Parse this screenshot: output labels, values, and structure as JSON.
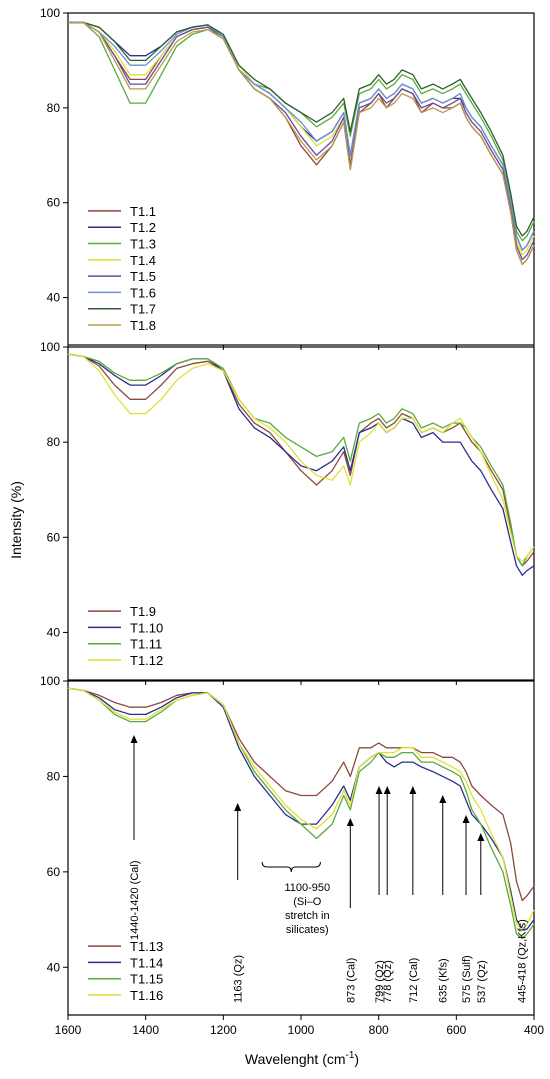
{
  "figure": {
    "ylabel": "Intensity (%)",
    "xlabel_main": "Wavelenght (cm",
    "xlabel_sup": "-1",
    "xlabel_close": ")"
  },
  "chart_data": [
    {
      "type": "line",
      "xlim": [
        1600,
        400
      ],
      "ylim": [
        30,
        100
      ],
      "x_ticks": [],
      "y_ticks": [
        40,
        60,
        80,
        100
      ],
      "x": [
        1600,
        1560,
        1520,
        1480,
        1440,
        1400,
        1360,
        1320,
        1280,
        1240,
        1200,
        1160,
        1120,
        1080,
        1040,
        1000,
        960,
        920,
        890,
        873,
        850,
        820,
        800,
        780,
        760,
        740,
        712,
        690,
        660,
        635,
        610,
        590,
        575,
        560,
        537,
        510,
        480,
        460,
        445,
        430,
        418,
        400
      ],
      "series": [
        {
          "name": "T1.1",
          "color": "#8B4A3C",
          "values": [
            98,
            98,
            96,
            91,
            86,
            86,
            91,
            95,
            96.5,
            97,
            95,
            88,
            84,
            82,
            78,
            72,
            68,
            72,
            77,
            67,
            79,
            81,
            83,
            80,
            82,
            84,
            83,
            79,
            81,
            80,
            80,
            81,
            78,
            76,
            74,
            70,
            66,
            58,
            50,
            47,
            48,
            51
          ]
        },
        {
          "name": "T1.2",
          "color": "#2D2D8F",
          "values": [
            98,
            98,
            97,
            94,
            91,
            91,
            93,
            96,
            97,
            97.5,
            95,
            88,
            85,
            83,
            80,
            76,
            73,
            75,
            79,
            70,
            81,
            82,
            84,
            82,
            83,
            85,
            84,
            81,
            82,
            81,
            82,
            82,
            80,
            78,
            76,
            72,
            68,
            60,
            53,
            50,
            51,
            54
          ]
        },
        {
          "name": "T1.3",
          "color": "#5AAA3C",
          "values": [
            98,
            98,
            95,
            88,
            81,
            81,
            87,
            93,
            95.5,
            96.5,
            95,
            89,
            85,
            84,
            81,
            79,
            76,
            78,
            81,
            74,
            83,
            84,
            86,
            84,
            85,
            87,
            86,
            83,
            84,
            83,
            84,
            85,
            83,
            81,
            78,
            74,
            69,
            61,
            54,
            52,
            53,
            56
          ]
        },
        {
          "name": "T1.4",
          "color": "#DDE235",
          "values": [
            98,
            98,
            96,
            92,
            87,
            87,
            91,
            95,
            96.5,
            97,
            95,
            89,
            85,
            83,
            80,
            76,
            72,
            74,
            78,
            69,
            81,
            82,
            84,
            82,
            83,
            85,
            84,
            81,
            82,
            81,
            82,
            83,
            80,
            78,
            76,
            72,
            68,
            60,
            52,
            49,
            50,
            53
          ]
        },
        {
          "name": "T1.5",
          "color": "#6A4A9E",
          "values": [
            98,
            98,
            96,
            91,
            85,
            85,
            90,
            95,
            96.5,
            97,
            95,
            88,
            84,
            82,
            79,
            74,
            70,
            73,
            78,
            68,
            80,
            81,
            83,
            81,
            82,
            84,
            83,
            80,
            81,
            80,
            81,
            82,
            79,
            77,
            75,
            71,
            67,
            59,
            51,
            48,
            49,
            52
          ]
        },
        {
          "name": "T1.6",
          "color": "#6B8FD6",
          "values": [
            98,
            98,
            96,
            93,
            89,
            89,
            92,
            95.5,
            97,
            97.5,
            95,
            88,
            85,
            83,
            80,
            77,
            73,
            75,
            79,
            70,
            81,
            82,
            84,
            82,
            83,
            85,
            84,
            81,
            82,
            81,
            82,
            83,
            80,
            78,
            76,
            72,
            68,
            60,
            53,
            50,
            51,
            54
          ]
        },
        {
          "name": "T1.7",
          "color": "#2E5E2E",
          "values": [
            98,
            98,
            97,
            94,
            90,
            90,
            93,
            96,
            97,
            97.5,
            95.5,
            89,
            86,
            84,
            81,
            79,
            77,
            79,
            82,
            75,
            84,
            85,
            87,
            85,
            86,
            88,
            87,
            84,
            85,
            84,
            85,
            86,
            84,
            82,
            79,
            75,
            70,
            62,
            55,
            53,
            54,
            57
          ]
        },
        {
          "name": "T1.8",
          "color": "#B89A4A",
          "values": [
            98,
            98,
            96,
            90,
            84,
            84,
            89,
            94,
            96,
            96.5,
            94.5,
            88,
            84,
            82,
            78,
            73,
            69,
            72,
            77,
            67,
            79,
            80,
            82,
            80,
            81,
            83,
            82,
            79,
            80,
            79,
            80,
            81,
            78,
            76,
            74,
            70,
            66,
            58,
            50,
            47,
            48,
            51
          ]
        }
      ],
      "legend": "left-bottom",
      "grid": false
    },
    {
      "type": "line",
      "xlim": [
        1600,
        400
      ],
      "ylim": [
        30,
        100
      ],
      "x_ticks": [],
      "y_ticks": [
        40,
        60,
        80,
        100
      ],
      "x": [
        1600,
        1560,
        1520,
        1480,
        1440,
        1400,
        1360,
        1320,
        1280,
        1240,
        1200,
        1160,
        1120,
        1080,
        1040,
        1000,
        960,
        920,
        890,
        873,
        850,
        820,
        800,
        780,
        760,
        740,
        712,
        690,
        660,
        635,
        610,
        590,
        575,
        560,
        537,
        510,
        480,
        460,
        445,
        430,
        418,
        400
      ],
      "series": [
        {
          "name": "T1.9",
          "color": "#8B4A3C",
          "values": [
            98.5,
            98,
            96,
            92,
            89,
            89,
            92,
            95.5,
            96.5,
            97,
            95,
            88,
            84,
            82,
            78,
            74,
            71,
            74,
            78,
            73,
            82,
            84,
            85,
            83,
            84,
            86,
            85,
            82,
            83,
            82,
            83,
            84,
            82,
            80,
            78,
            74,
            70,
            62,
            56,
            54,
            55,
            57
          ]
        },
        {
          "name": "T1.10",
          "color": "#2D2D8F",
          "values": [
            98.5,
            98,
            96.5,
            94,
            92,
            92,
            94,
            96.5,
            97.5,
            97.5,
            95,
            87,
            83,
            81,
            78,
            75,
            74,
            76,
            79,
            74,
            82,
            83,
            84,
            82,
            83,
            85,
            84,
            81,
            82,
            80,
            80,
            80,
            78,
            76,
            74,
            70,
            66,
            59,
            54,
            52,
            53,
            54
          ]
        },
        {
          "name": "T1.11",
          "color": "#5AAA3C",
          "values": [
            98.5,
            98,
            97,
            94.5,
            93,
            93,
            94.5,
            96.5,
            97.5,
            97.5,
            95.5,
            89,
            85,
            84,
            81,
            79,
            77,
            78,
            81,
            76,
            84,
            85,
            86,
            84,
            85,
            87,
            86,
            83,
            84,
            83,
            84,
            84,
            83,
            81,
            79,
            75,
            71,
            63,
            56,
            54,
            56,
            58
          ]
        },
        {
          "name": "T1.12",
          "color": "#DDE235",
          "values": [
            98.5,
            98,
            95,
            90,
            86,
            86,
            89,
            93,
            95.5,
            96.5,
            95,
            89,
            85,
            83,
            80,
            76,
            73,
            72,
            75,
            71,
            80,
            82,
            84,
            82,
            83,
            85,
            85,
            82,
            83,
            82,
            84,
            85,
            83,
            81,
            78,
            73,
            68,
            61,
            56,
            55,
            56,
            58
          ]
        }
      ],
      "legend": "left-bottom",
      "grid": false
    },
    {
      "type": "line",
      "xlim": [
        1600,
        400
      ],
      "ylim": [
        30,
        100
      ],
      "x_ticks": [
        1600,
        1400,
        1200,
        1000,
        800,
        600,
        400
      ],
      "y_ticks": [
        40,
        60,
        80,
        100
      ],
      "x": [
        1600,
        1560,
        1520,
        1480,
        1440,
        1400,
        1360,
        1320,
        1280,
        1240,
        1200,
        1160,
        1120,
        1080,
        1040,
        1000,
        960,
        920,
        890,
        873,
        850,
        820,
        800,
        780,
        760,
        740,
        712,
        690,
        660,
        635,
        610,
        590,
        575,
        560,
        537,
        510,
        480,
        460,
        445,
        430,
        418,
        400
      ],
      "series": [
        {
          "name": "T1.13",
          "color": "#8B4A3C",
          "values": [
            98.5,
            98,
            97,
            95.5,
            94.5,
            94.5,
            95.5,
            97,
            97.5,
            97.5,
            95,
            88,
            83,
            80,
            77,
            76,
            76,
            79,
            83,
            80,
            86,
            86,
            87,
            86,
            86,
            86,
            86,
            85,
            85,
            84,
            84,
            83,
            81,
            78,
            76,
            74,
            72,
            66,
            58,
            54,
            55,
            57
          ]
        },
        {
          "name": "T1.14",
          "color": "#2D2D8F",
          "values": [
            98.5,
            98,
            96.5,
            94,
            93,
            93,
            94.5,
            96.5,
            97.5,
            97.5,
            94.5,
            86,
            80,
            76,
            72,
            70,
            70,
            74,
            78,
            75,
            82,
            84,
            85,
            83,
            82,
            83,
            83,
            82,
            81,
            80,
            79,
            78,
            75,
            72,
            70,
            67,
            63,
            56,
            50,
            48,
            48,
            50
          ]
        },
        {
          "name": "T1.15",
          "color": "#5AAA3C",
          "values": [
            98.5,
            98,
            96,
            93,
            91.5,
            91.5,
            93.5,
            96,
            97,
            97.5,
            95,
            87,
            81,
            77,
            73,
            70,
            67,
            70,
            76,
            73,
            81,
            83,
            85,
            84,
            84,
            85,
            85,
            83,
            83,
            82,
            81,
            80,
            77,
            73,
            70,
            65,
            60,
            53,
            47,
            46,
            47,
            49
          ]
        },
        {
          "name": "T1.16",
          "color": "#DDE235",
          "values": [
            98.5,
            98,
            96,
            93.5,
            92,
            92,
            94,
            96,
            97,
            97.5,
            95,
            87,
            82,
            78,
            74,
            71,
            69,
            72,
            77,
            74,
            82,
            84,
            85,
            85,
            85,
            86,
            86,
            84,
            84,
            83,
            82,
            81,
            79,
            76,
            73,
            68,
            63,
            55,
            49,
            48,
            49,
            52
          ]
        }
      ],
      "annotations": [
        {
          "wn": 1430,
          "text": "1440-1420 (Cal)"
        },
        {
          "wn": 1163,
          "text": "1163 (Qz)"
        },
        {
          "wn": 873,
          "text": "873 (Cal)"
        },
        {
          "wn": 799,
          "text": "799 (Qz)"
        },
        {
          "wn": 778,
          "text": "778 (Qz)"
        },
        {
          "wn": 712,
          "text": "712 (Cal)"
        },
        {
          "wn": 635,
          "text": "635 (Kfs)"
        },
        {
          "wn": 575,
          "text": "575 (Sulf)"
        },
        {
          "wn": 537,
          "text": "537 (Qz)"
        },
        {
          "wn": 432,
          "text": "445-418 (Qz,Kfs)"
        }
      ],
      "brace": {
        "from": 1100,
        "to": 950,
        "lines": [
          "1100-950",
          "(Si–O",
          "stretch in",
          "silicates)"
        ]
      },
      "legend": "left-bottom",
      "grid": false
    }
  ]
}
